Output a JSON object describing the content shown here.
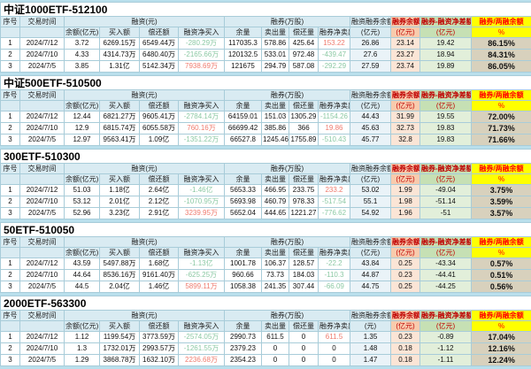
{
  "colors": {
    "page_bg": "#b9dfec",
    "header_bg": "#d9ebf2",
    "orange_header_bg": "#f8cbad",
    "green_header_bg": "#c6e0b4",
    "yellow_header_bg": "#ffff00",
    "accent_red_text": "#c00000",
    "positive_value_text": "#ef7b6e",
    "negative_value_text": "#8cc9a4",
    "blue_cell_bg": "#eaf3f8",
    "peach_cell_bg": "#fbe5d6",
    "green_cell_bg": "#e2efda",
    "ratio_cell_bg": "#d8d1bd"
  },
  "columns": {
    "seq": "序号",
    "date": "交易时间",
    "financing_group": "融资(元)",
    "financing_sub": [
      "余额(亿元)",
      "买入额",
      "偿还额",
      "融资净买入"
    ],
    "short_group": "融券(万股)",
    "short_sub": [
      "余量",
      "卖出量",
      "偿还量",
      "融券净卖出"
    ],
    "margin_total": "融资融券余额",
    "short_balance": "融券余额",
    "short_balance_sub": "(亿元)",
    "diff": "融券-融资净差额",
    "diff_sub": "(亿元)",
    "ratio": "融券/两融余额",
    "ratio_sub": "%"
  },
  "sections": [
    {
      "title": "中证1000ETF-512100",
      "margin_total_sub": "(亿元)",
      "rows": [
        {
          "seq": "1",
          "date": "2024/7/12",
          "balance": "3.72",
          "buy": "6269.15万",
          "repay": "6549.44万",
          "net_buy": "-280.29万",
          "net_buy_c": "green",
          "qty": "117035.3",
          "sell": "578.86",
          "qty_repay": "425.64",
          "net_sell": "153.22",
          "net_sell_c": "red",
          "total": "26.86",
          "short_bal": "23.14",
          "diff": "19.42",
          "ratio": "86.15%"
        },
        {
          "seq": "2",
          "date": "2024/7/10",
          "balance": "4.33",
          "buy": "4314.73万",
          "repay": "6480.40万",
          "net_buy": "-2165.66万",
          "net_buy_c": "green",
          "qty": "120132.5",
          "sell": "533.01",
          "qty_repay": "972.48",
          "net_sell": "-439.47",
          "net_sell_c": "green",
          "total": "27.6",
          "short_bal": "23.27",
          "diff": "18.94",
          "ratio": "84.31%"
        },
        {
          "seq": "3",
          "date": "2024/7/5",
          "balance": "3.85",
          "buy": "1.31亿",
          "repay": "5142.34万",
          "net_buy": "7938.69万",
          "net_buy_c": "red",
          "qty": "121675",
          "sell": "294.79",
          "qty_repay": "587.08",
          "net_sell": "-292.29",
          "net_sell_c": "green",
          "total": "27.59",
          "short_bal": "23.74",
          "diff": "19.89",
          "ratio": "86.05%"
        }
      ]
    },
    {
      "title": "中证500ETF-510500",
      "margin_total_sub": "(亿元)",
      "rows": [
        {
          "seq": "1",
          "date": "2024/7/12",
          "balance": "12.44",
          "buy": "6821.27万",
          "repay": "9605.41万",
          "net_buy": "-2784.14万",
          "net_buy_c": "green",
          "qty": "64159.01",
          "sell": "151.03",
          "qty_repay": "1305.29",
          "net_sell": "-1154.26",
          "net_sell_c": "green",
          "total": "44.43",
          "short_bal": "31.99",
          "diff": "19.55",
          "ratio": "72.00%"
        },
        {
          "seq": "2",
          "date": "2024/7/10",
          "balance": "12.9",
          "buy": "6815.74万",
          "repay": "6055.58万",
          "net_buy": "760.16万",
          "net_buy_c": "red",
          "qty": "66699.42",
          "sell": "385.86",
          "qty_repay": "366",
          "net_sell": "19.86",
          "net_sell_c": "red",
          "total": "45.63",
          "short_bal": "32.73",
          "diff": "19.83",
          "ratio": "71.73%"
        },
        {
          "seq": "3",
          "date": "2024/7/5",
          "balance": "12.97",
          "buy": "9563.41万",
          "repay": "1.09亿",
          "net_buy": "-1351.22万",
          "net_buy_c": "green",
          "qty": "66527.8",
          "sell": "1245.46",
          "qty_repay": "1755.89",
          "net_sell": "-510.43",
          "net_sell_c": "green",
          "total": "45.77",
          "short_bal": "32.8",
          "diff": "19.83",
          "ratio": "71.66%"
        }
      ]
    },
    {
      "title": "300ETF-510300",
      "margin_total_sub": "(亿元)",
      "rows": [
        {
          "seq": "1",
          "date": "2024/7/12",
          "balance": "51.03",
          "buy": "1.18亿",
          "repay": "2.64亿",
          "net_buy": "-1.46亿",
          "net_buy_c": "green",
          "qty": "5653.33",
          "sell": "466.95",
          "qty_repay": "233.75",
          "net_sell": "233.2",
          "net_sell_c": "red",
          "total": "53.02",
          "short_bal": "1.99",
          "diff": "-49.04",
          "ratio": "3.75%"
        },
        {
          "seq": "2",
          "date": "2024/7/10",
          "balance": "53.12",
          "buy": "2.01亿",
          "repay": "2.12亿",
          "net_buy": "-1070.95万",
          "net_buy_c": "green",
          "qty": "5693.98",
          "sell": "460.79",
          "qty_repay": "978.33",
          "net_sell": "-517.54",
          "net_sell_c": "green",
          "total": "55.1",
          "short_bal": "1.98",
          "diff": "-51.14",
          "ratio": "3.59%"
        },
        {
          "seq": "3",
          "date": "2024/7/5",
          "balance": "52.96",
          "buy": "3.23亿",
          "repay": "2.91亿",
          "net_buy": "3239.95万",
          "net_buy_c": "red",
          "qty": "5652.04",
          "sell": "444.65",
          "qty_repay": "1221.27",
          "net_sell": "-776.62",
          "net_sell_c": "green",
          "total": "54.92",
          "short_bal": "1.96",
          "diff": "-51",
          "ratio": "3.57%"
        }
      ]
    },
    {
      "title": "50ETF-510050",
      "margin_total_sub": "(亿元)",
      "rows": [
        {
          "seq": "1",
          "date": "2024/7/12",
          "balance": "43.59",
          "buy": "5497.88万",
          "repay": "1.68亿",
          "net_buy": "-1.13亿",
          "net_buy_c": "green",
          "qty": "1001.78",
          "sell": "106.37",
          "qty_repay": "128.57",
          "net_sell": "-22.2",
          "net_sell_c": "green",
          "total": "43.84",
          "short_bal": "0.25",
          "diff": "-43.34",
          "ratio": "0.57%"
        },
        {
          "seq": "2",
          "date": "2024/7/10",
          "balance": "44.64",
          "buy": "8536.16万",
          "repay": "9161.40万",
          "net_buy": "-625.25万",
          "net_buy_c": "green",
          "qty": "960.66",
          "sell": "73.73",
          "qty_repay": "184.03",
          "net_sell": "-110.3",
          "net_sell_c": "green",
          "total": "44.87",
          "short_bal": "0.23",
          "diff": "-44.41",
          "ratio": "0.51%"
        },
        {
          "seq": "3",
          "date": "2024/7/5",
          "balance": "44.5",
          "buy": "2.04亿",
          "repay": "1.46亿",
          "net_buy": "5899.11万",
          "net_buy_c": "red",
          "qty": "1058.38",
          "sell": "241.35",
          "qty_repay": "307.44",
          "net_sell": "-66.09",
          "net_sell_c": "green",
          "total": "44.75",
          "short_bal": "0.25",
          "diff": "-44.25",
          "ratio": "0.56%"
        }
      ]
    },
    {
      "title": "2000ETF-563300",
      "margin_total_sub": "(元)",
      "rows": [
        {
          "seq": "1",
          "date": "2024/7/12",
          "balance": "1.12",
          "buy": "1199.54万",
          "repay": "3773.59万",
          "net_buy": "-2574.05万",
          "net_buy_c": "green",
          "qty": "2990.73",
          "sell": "611.5",
          "qty_repay": "0",
          "net_sell": "611.5",
          "net_sell_c": "red",
          "total": "1.35",
          "short_bal": "0.23",
          "diff": "-0.89",
          "ratio": "17.04%"
        },
        {
          "seq": "2",
          "date": "2024/7/10",
          "balance": "1.3",
          "buy": "1732.01万",
          "repay": "2993.57万",
          "net_buy": "-1261.55万",
          "net_buy_c": "green",
          "qty": "2379.23",
          "sell": "0",
          "qty_repay": "0",
          "net_sell": "0",
          "net_sell_c": "",
          "total": "1.48",
          "short_bal": "0.18",
          "diff": "-1.12",
          "ratio": "12.16%"
        },
        {
          "seq": "3",
          "date": "2024/7/5",
          "balance": "1.29",
          "buy": "3868.78万",
          "repay": "1632.10万",
          "net_buy": "2236.68万",
          "net_buy_c": "red",
          "qty": "2354.23",
          "sell": "0",
          "qty_repay": "0",
          "net_sell": "0",
          "net_sell_c": "",
          "total": "1.47",
          "short_bal": "0.18",
          "diff": "-1.11",
          "ratio": "12.24%"
        }
      ]
    }
  ]
}
